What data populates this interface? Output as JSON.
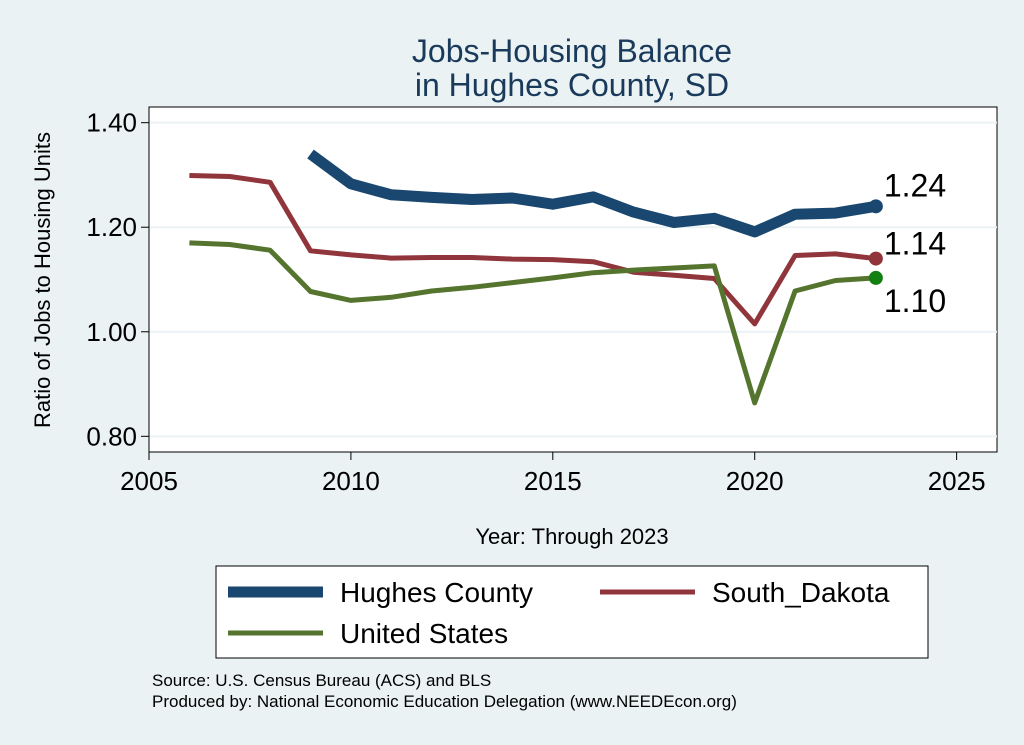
{
  "chart_data": {
    "type": "line",
    "title": [
      "Jobs-Housing Balance",
      "in Hughes County, SD"
    ],
    "xlabel": "Year: Through 2023",
    "ylabel": "Ratio of Jobs to Housing Units",
    "xlim": [
      2005,
      2026
    ],
    "ylim": [
      0.77,
      1.43
    ],
    "x_ticks": [
      2005,
      2010,
      2015,
      2020,
      2025
    ],
    "y_ticks": [
      0.8,
      1.0,
      1.2,
      1.4
    ],
    "y_tick_labels": [
      "0.80",
      "1.00",
      "1.20",
      "1.40"
    ],
    "grid": true,
    "legend_position": "bottom",
    "series": [
      {
        "name": "Hughes County",
        "color": "#1a476f",
        "line_width": 11,
        "end_label": "1.24",
        "points": [
          [
            2009,
            1.34
          ],
          [
            2010,
            1.283
          ],
          [
            2011,
            1.262
          ],
          [
            2012,
            1.257
          ],
          [
            2013,
            1.253
          ],
          [
            2014,
            1.256
          ],
          [
            2015,
            1.244
          ],
          [
            2016,
            1.258
          ],
          [
            2017,
            1.229
          ],
          [
            2018,
            1.209
          ],
          [
            2019,
            1.217
          ],
          [
            2020,
            1.191
          ],
          [
            2021,
            1.225
          ],
          [
            2022,
            1.227
          ],
          [
            2023,
            1.24
          ]
        ]
      },
      {
        "name": "South_Dakota",
        "color": "#90353b",
        "line_width": 5,
        "end_label": "1.14",
        "points": [
          [
            2006,
            1.299
          ],
          [
            2007,
            1.297
          ],
          [
            2008,
            1.286
          ],
          [
            2009,
            1.155
          ],
          [
            2010,
            1.147
          ],
          [
            2011,
            1.141
          ],
          [
            2012,
            1.142
          ],
          [
            2013,
            1.142
          ],
          [
            2014,
            1.139
          ],
          [
            2015,
            1.138
          ],
          [
            2016,
            1.134
          ],
          [
            2017,
            1.114
          ],
          [
            2018,
            1.108
          ],
          [
            2019,
            1.102
          ],
          [
            2020,
            1.015
          ],
          [
            2021,
            1.146
          ],
          [
            2022,
            1.149
          ],
          [
            2023,
            1.14
          ]
        ]
      },
      {
        "name": "United States",
        "color": "#55752f",
        "line_width": 5,
        "end_label": "1.10",
        "points": [
          [
            2006,
            1.17
          ],
          [
            2007,
            1.167
          ],
          [
            2008,
            1.156
          ],
          [
            2009,
            1.077
          ],
          [
            2010,
            1.06
          ],
          [
            2011,
            1.066
          ],
          [
            2012,
            1.078
          ],
          [
            2013,
            1.085
          ],
          [
            2014,
            1.094
          ],
          [
            2015,
            1.103
          ],
          [
            2016,
            1.113
          ],
          [
            2017,
            1.118
          ],
          [
            2018,
            1.122
          ],
          [
            2019,
            1.126
          ],
          [
            2020,
            0.864
          ],
          [
            2021,
            1.078
          ],
          [
            2022,
            1.098
          ],
          [
            2023,
            1.103
          ]
        ]
      }
    ],
    "end_marker_colors": [
      "#1a476f",
      "#90353b",
      "#118011"
    ]
  },
  "source_note": "Source: U.S. Census Bureau (ACS) and BLS",
  "producer_note": "Produced by: National Economic Education Delegation (www.NEEDEcon.org)"
}
